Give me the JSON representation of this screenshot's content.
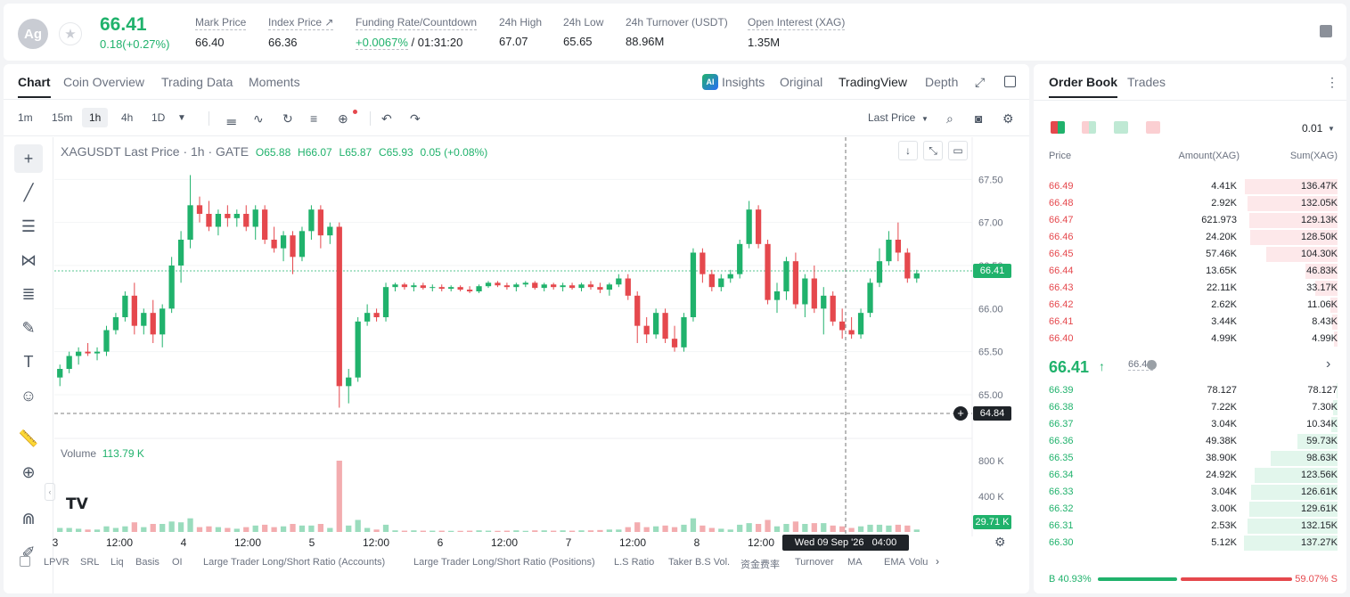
{
  "header": {
    "coin_icon": "Ag",
    "last_price": "66.41",
    "change": "0.18(+0.27%)",
    "stats": [
      {
        "label": "Mark Price",
        "value": "66.40"
      },
      {
        "label": "Index Price ↗",
        "value": "66.36"
      },
      {
        "label": "Funding Rate/Countdown",
        "value_a": "+0.0067%",
        "value_b": "/ 01:31:20"
      },
      {
        "label": "24h High",
        "value": "67.07"
      },
      {
        "label": "24h Low",
        "value": "65.65"
      },
      {
        "label": "24h Turnover (USDT)",
        "value": "88.96M"
      },
      {
        "label": "Open Interest (XAG)",
        "value": "1.35M"
      }
    ]
  },
  "chart_tabs": {
    "chart": "Chart",
    "coin_overview": "Coin Overview",
    "trading_data": "Trading Data",
    "moments": "Moments"
  },
  "view_tabs": {
    "insights": "Insights",
    "original": "Original",
    "tradingview": "TradingView",
    "depth": "Depth"
  },
  "timeframes": [
    "1m",
    "15m",
    "1h",
    "4h",
    "1D"
  ],
  "price_source": "Last Price",
  "legend": {
    "symbol": "XAGUSDT Last Price · 1h · GATE",
    "o": "O65.88",
    "h": "H66.07",
    "l": "L65.87",
    "c": "C65.93",
    "chg": "0.05 (+0.08%)"
  },
  "volume_legend": {
    "label": "Volume",
    "value": "113.79 K"
  },
  "price_axis": [
    "67.50",
    "67.00",
    "66.50",
    "66.00",
    "65.50",
    "65.00"
  ],
  "volume_axis": [
    "800 K",
    "400 K"
  ],
  "x_axis": [
    "3",
    "12:00",
    "4",
    "12:00",
    "5",
    "12:00",
    "6",
    "12:00",
    "7",
    "12:00",
    "8",
    "12:00",
    "10"
  ],
  "current_price_tag": "66.41",
  "crosshair_price_tag": "64.84",
  "current_volume_tag": "29.71 K",
  "crosshair_time": "Wed 09 Sep '26   04:00",
  "indicators": [
    "LPVR",
    "SRL",
    "Liq",
    "Basis",
    "OI",
    "Large Trader Long/Short Ratio (Accounts)",
    "Large Trader Long/Short Ratio (Positions)",
    "L.S Ratio",
    "Taker B.S Vol.",
    "资金费率",
    "Turnover",
    "MA",
    "EMA",
    "Volu"
  ],
  "orderbook": {
    "tabs": {
      "book": "Order Book",
      "trades": "Trades"
    },
    "precision": "0.01",
    "headers": {
      "price": "Price",
      "amount": "Amount(XAG)",
      "sum": "Sum(XAG)"
    },
    "asks": [
      {
        "price": "66.49",
        "amount": "4.41K",
        "sum": "136.47K",
        "depth": 0.99
      },
      {
        "price": "66.48",
        "amount": "2.92K",
        "sum": "132.05K",
        "depth": 0.96
      },
      {
        "price": "66.47",
        "amount": "621.973",
        "sum": "129.13K",
        "depth": 0.94
      },
      {
        "price": "66.46",
        "amount": "24.20K",
        "sum": "128.50K",
        "depth": 0.93
      },
      {
        "price": "66.45",
        "amount": "57.46K",
        "sum": "104.30K",
        "depth": 0.76
      },
      {
        "price": "66.44",
        "amount": "13.65K",
        "sum": "46.83K",
        "depth": 0.34
      },
      {
        "price": "66.43",
        "amount": "22.11K",
        "sum": "33.17K",
        "depth": 0.24
      },
      {
        "price": "66.42",
        "amount": "2.62K",
        "sum": "11.06K",
        "depth": 0.08
      },
      {
        "price": "66.41",
        "amount": "3.44K",
        "sum": "8.43K",
        "depth": 0.06
      },
      {
        "price": "66.40",
        "amount": "4.99K",
        "sum": "4.99K",
        "depth": 0.04
      }
    ],
    "mid_price": "66.41",
    "mark_price": "66.40",
    "bids": [
      {
        "price": "66.39",
        "amount": "78.127",
        "sum": "78.127",
        "depth": 0.01
      },
      {
        "price": "66.38",
        "amount": "7.22K",
        "sum": "7.30K",
        "depth": 0.05
      },
      {
        "price": "66.37",
        "amount": "3.04K",
        "sum": "10.34K",
        "depth": 0.07
      },
      {
        "price": "66.36",
        "amount": "49.38K",
        "sum": "59.73K",
        "depth": 0.43
      },
      {
        "price": "66.35",
        "amount": "38.90K",
        "sum": "98.63K",
        "depth": 0.71
      },
      {
        "price": "66.34",
        "amount": "24.92K",
        "sum": "123.56K",
        "depth": 0.89
      },
      {
        "price": "66.33",
        "amount": "3.04K",
        "sum": "126.61K",
        "depth": 0.92
      },
      {
        "price": "66.32",
        "amount": "3.00K",
        "sum": "129.61K",
        "depth": 0.94
      },
      {
        "price": "66.31",
        "amount": "2.53K",
        "sum": "132.15K",
        "depth": 0.96
      },
      {
        "price": "66.30",
        "amount": "5.12K",
        "sum": "137.27K",
        "depth": 1.0
      }
    ],
    "buy_ratio": "B 40.93%",
    "sell_ratio": "59.07% S",
    "buy_fraction": 0.4093
  },
  "colors": {
    "up": "#20b26c",
    "down": "#e5484d",
    "ask_bg": "#fde8ea",
    "bid_bg": "#e2f6ec"
  },
  "chart_data": {
    "type": "candlestick",
    "symbol": "XAGUSDT",
    "interval": "1h",
    "ylim": [
      64.7,
      67.7
    ],
    "volume_ylim": [
      0,
      1000000
    ],
    "candles": [
      [
        65.2,
        65.35,
        65.1,
        65.3,
        1
      ],
      [
        65.3,
        65.5,
        65.25,
        65.45,
        1
      ],
      [
        65.45,
        65.55,
        65.35,
        65.5,
        1
      ],
      [
        65.5,
        65.6,
        65.45,
        65.48,
        0
      ],
      [
        65.48,
        65.55,
        65.4,
        65.5,
        1
      ],
      [
        65.5,
        65.8,
        65.45,
        65.75,
        1
      ],
      [
        65.75,
        65.95,
        65.7,
        65.9,
        1
      ],
      [
        65.9,
        66.2,
        65.85,
        66.15,
        1
      ],
      [
        66.15,
        66.3,
        65.7,
        65.8,
        0
      ],
      [
        65.8,
        66.0,
        65.7,
        65.95,
        1
      ],
      [
        65.95,
        66.1,
        65.6,
        65.7,
        0
      ],
      [
        65.7,
        66.05,
        65.55,
        66.0,
        1
      ],
      [
        66.0,
        66.6,
        65.95,
        66.5,
        1
      ],
      [
        66.5,
        66.9,
        66.3,
        66.8,
        1
      ],
      [
        66.8,
        67.55,
        66.7,
        67.2,
        1
      ],
      [
        67.2,
        67.3,
        67.0,
        67.1,
        0
      ],
      [
        67.1,
        67.25,
        66.9,
        66.95,
        0
      ],
      [
        66.95,
        67.15,
        66.85,
        67.1,
        1
      ],
      [
        67.1,
        67.2,
        66.95,
        67.05,
        0
      ],
      [
        67.05,
        67.15,
        66.95,
        67.1,
        1
      ],
      [
        67.1,
        67.2,
        66.9,
        66.95,
        0
      ],
      [
        66.95,
        67.2,
        66.8,
        67.15,
        1
      ],
      [
        67.15,
        67.2,
        66.75,
        66.8,
        0
      ],
      [
        66.8,
        66.95,
        66.65,
        66.7,
        0
      ],
      [
        66.7,
        66.9,
        66.55,
        66.85,
        1
      ],
      [
        66.85,
        66.9,
        66.4,
        66.6,
        0
      ],
      [
        66.6,
        66.95,
        66.55,
        66.9,
        1
      ],
      [
        66.9,
        67.2,
        66.8,
        67.15,
        1
      ],
      [
        67.15,
        67.2,
        66.7,
        66.85,
        0
      ],
      [
        66.85,
        67.0,
        66.75,
        66.95,
        1
      ],
      [
        66.95,
        67.0,
        64.85,
        65.1,
        0
      ],
      [
        65.1,
        65.3,
        64.9,
        65.2,
        1
      ],
      [
        65.2,
        65.9,
        65.15,
        65.85,
        1
      ],
      [
        65.85,
        66.05,
        65.8,
        65.95,
        1
      ],
      [
        65.95,
        66.0,
        65.85,
        65.9,
        0
      ],
      [
        65.9,
        66.3,
        65.85,
        66.25,
        1
      ],
      [
        66.25,
        66.3,
        66.2,
        66.28,
        1
      ],
      [
        66.28,
        66.3,
        66.22,
        66.25,
        0
      ],
      [
        66.25,
        66.3,
        66.2,
        66.27,
        1
      ],
      [
        66.27,
        66.3,
        66.22,
        66.24,
        0
      ],
      [
        66.24,
        66.28,
        66.2,
        66.25,
        1
      ],
      [
        66.25,
        66.28,
        66.2,
        66.23,
        0
      ],
      [
        66.23,
        66.27,
        66.2,
        66.25,
        1
      ],
      [
        66.25,
        66.27,
        66.2,
        66.22,
        0
      ],
      [
        66.22,
        66.26,
        66.18,
        66.2,
        0
      ],
      [
        66.2,
        66.28,
        66.18,
        66.26,
        1
      ],
      [
        66.26,
        66.32,
        66.24,
        66.3,
        1
      ],
      [
        66.3,
        66.32,
        66.25,
        66.27,
        0
      ],
      [
        66.27,
        66.3,
        66.22,
        66.25,
        0
      ],
      [
        66.25,
        66.3,
        66.2,
        66.28,
        1
      ],
      [
        66.28,
        66.32,
        66.25,
        66.3,
        1
      ],
      [
        66.3,
        66.32,
        66.22,
        66.24,
        0
      ],
      [
        66.24,
        66.3,
        66.2,
        66.28,
        1
      ],
      [
        66.28,
        66.3,
        66.22,
        66.25,
        0
      ],
      [
        66.25,
        66.3,
        66.2,
        66.27,
        1
      ],
      [
        66.27,
        66.3,
        66.22,
        66.24,
        0
      ],
      [
        66.24,
        66.3,
        66.2,
        66.28,
        1
      ],
      [
        66.28,
        66.32,
        66.22,
        66.25,
        0
      ],
      [
        66.25,
        66.3,
        66.18,
        66.22,
        0
      ],
      [
        66.22,
        66.3,
        66.15,
        66.28,
        1
      ],
      [
        66.28,
        66.4,
        66.25,
        66.35,
        1
      ],
      [
        66.35,
        66.4,
        66.1,
        66.15,
        0
      ],
      [
        66.15,
        66.2,
        65.6,
        65.8,
        0
      ],
      [
        65.8,
        65.9,
        65.6,
        65.7,
        0
      ],
      [
        65.7,
        66.0,
        65.65,
        65.95,
        1
      ],
      [
        65.95,
        66.0,
        65.6,
        65.65,
        0
      ],
      [
        65.65,
        65.8,
        65.5,
        65.55,
        0
      ],
      [
        65.55,
        65.95,
        65.5,
        65.9,
        1
      ],
      [
        65.9,
        66.7,
        65.85,
        66.65,
        1
      ],
      [
        66.65,
        66.7,
        66.3,
        66.4,
        0
      ],
      [
        66.4,
        66.45,
        66.2,
        66.25,
        0
      ],
      [
        66.25,
        66.4,
        66.2,
        66.35,
        1
      ],
      [
        66.35,
        66.45,
        66.3,
        66.4,
        1
      ],
      [
        66.4,
        66.8,
        66.35,
        66.75,
        1
      ],
      [
        66.75,
        67.25,
        66.7,
        67.15,
        1
      ],
      [
        67.15,
        67.2,
        66.7,
        66.75,
        0
      ],
      [
        66.75,
        66.8,
        66.05,
        66.1,
        0
      ],
      [
        66.1,
        66.3,
        65.95,
        66.2,
        1
      ],
      [
        66.2,
        66.6,
        66.1,
        66.55,
        1
      ],
      [
        66.55,
        66.65,
        66.0,
        66.05,
        0
      ],
      [
        66.05,
        66.4,
        65.9,
        66.35,
        1
      ],
      [
        66.35,
        66.5,
        65.95,
        66.0,
        0
      ],
      [
        66.0,
        66.25,
        65.7,
        66.15,
        1
      ],
      [
        66.15,
        66.2,
        65.8,
        65.85,
        0
      ],
      [
        65.85,
        66.0,
        65.65,
        65.75,
        0
      ],
      [
        65.75,
        65.9,
        65.65,
        65.7,
        0
      ],
      [
        65.7,
        66.0,
        65.65,
        65.95,
        1
      ],
      [
        65.95,
        66.35,
        65.9,
        66.3,
        1
      ],
      [
        66.3,
        66.7,
        66.25,
        66.55,
        1
      ],
      [
        66.55,
        66.9,
        66.5,
        66.8,
        1
      ],
      [
        66.8,
        67.0,
        66.55,
        66.65,
        0
      ],
      [
        66.65,
        66.7,
        66.3,
        66.35,
        0
      ],
      [
        66.35,
        66.45,
        66.3,
        66.41,
        1
      ]
    ],
    "volume_peak": 800000
  }
}
